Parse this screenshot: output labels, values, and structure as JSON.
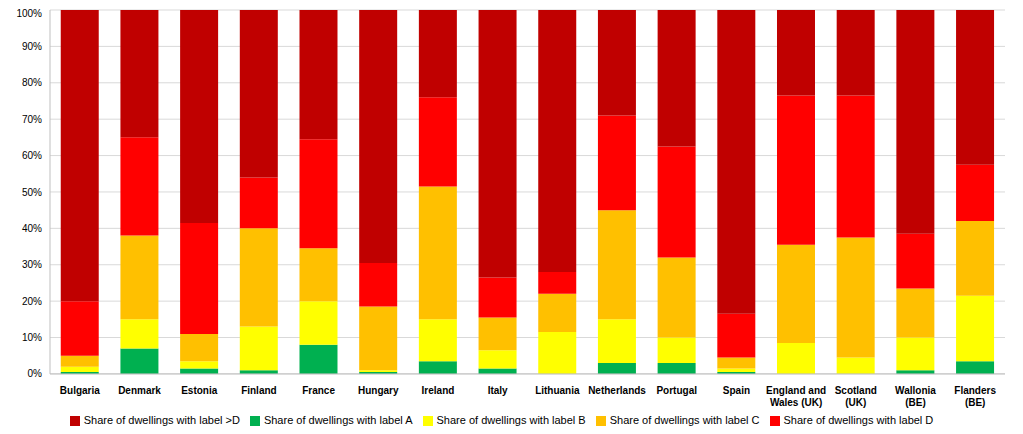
{
  "chart_data": {
    "type": "bar",
    "stacked": true,
    "grid": true,
    "legend": "bottom",
    "categories": [
      "Bulgaria",
      "Denmark",
      "Estonia",
      "Finland",
      "France",
      "Hungary",
      "Ireland",
      "Italy",
      "Lithuania",
      "Netherlands",
      "Portugal",
      "Spain",
      "England and Wales (UK)",
      "Scotland (UK)",
      "Wallonia (BE)",
      "Flanders (BE)"
    ],
    "series": [
      {
        "name": "Share of dwellings with label A",
        "color": "#00b050",
        "values": [
          0.5,
          7,
          1.5,
          1,
          8,
          0.5,
          3.5,
          1.5,
          0,
          3,
          3,
          0.5,
          0,
          0,
          1,
          3.5
        ]
      },
      {
        "name": "Share of dwellings with label B",
        "color": "#ffff00",
        "values": [
          1.5,
          8,
          2,
          12,
          12,
          0.5,
          11.5,
          5,
          11.5,
          12,
          7,
          1,
          8.5,
          4.5,
          9,
          18
        ]
      },
      {
        "name": "Share of dwellings with label C",
        "color": "#ffc000",
        "values": [
          3,
          23,
          7.5,
          27,
          14.5,
          17.5,
          36.5,
          9,
          10.5,
          30,
          22,
          3,
          27,
          33,
          13.5,
          20.5
        ]
      },
      {
        "name": "Share of dwellings with label D",
        "color": "#ff0000",
        "values": [
          15,
          27,
          30.5,
          14,
          30,
          12,
          24.5,
          11,
          6,
          26,
          30.5,
          12,
          41,
          39,
          15,
          15.5
        ]
      },
      {
        "name": "Share of dwellings with label >D",
        "color": "#c00000",
        "values": [
          80,
          35,
          58.5,
          46,
          35.5,
          69.5,
          24,
          73.5,
          72,
          29,
          37.5,
          83.5,
          23.5,
          23.5,
          61.5,
          42.5
        ]
      }
    ],
    "ylim": [
      0,
      100
    ],
    "yticks": [
      {
        "value": 0,
        "label": "0%"
      },
      {
        "value": 10,
        "label": "10%"
      },
      {
        "value": 20,
        "label": "20%"
      },
      {
        "value": 30,
        "label": "30%"
      },
      {
        "value": 40,
        "label": "40%"
      },
      {
        "value": 50,
        "label": "50%"
      },
      {
        "value": 60,
        "label": "60%"
      },
      {
        "value": 70,
        "label": "70%"
      },
      {
        "value": 80,
        "label": "80%"
      },
      {
        "value": 90,
        "label": "90%"
      },
      {
        "value": 100,
        "label": "100%"
      }
    ]
  }
}
